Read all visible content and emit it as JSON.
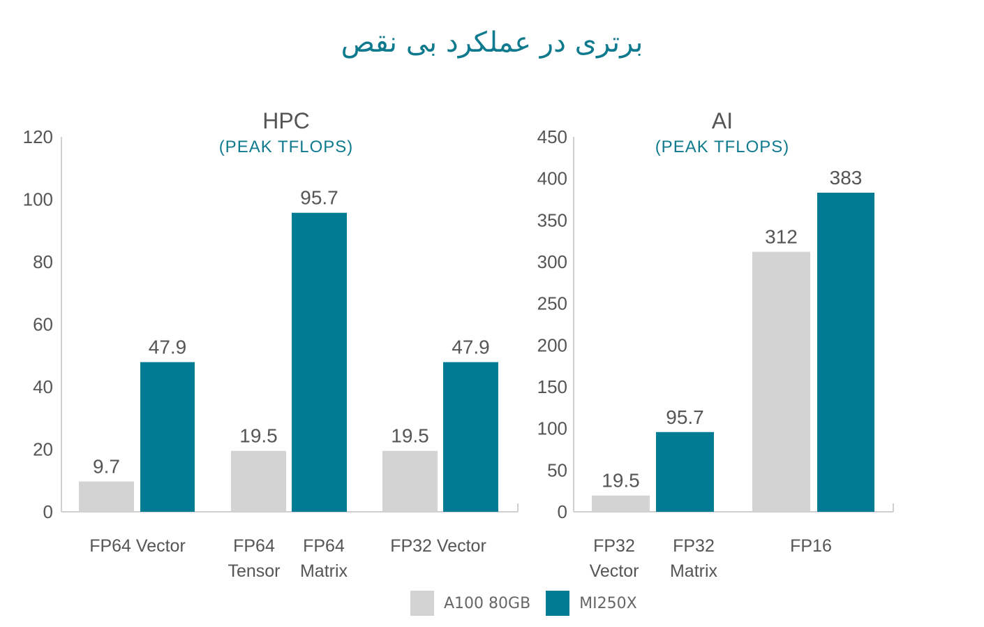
{
  "title": "برتری در عملکرد بی نقص",
  "legend": [
    {
      "label": "A100 80GB",
      "color": "#d3d3d3"
    },
    {
      "label": "MI250X",
      "color": "#007b94"
    }
  ],
  "chart_data": [
    {
      "type": "bar",
      "title": "HPC",
      "subtitle": "(PEAK TFLOPS)",
      "ylim": [
        0,
        120
      ],
      "yticks": [
        "0",
        "20",
        "40",
        "60",
        "80",
        "100",
        "120"
      ],
      "groups": [
        {
          "label_lines": [
            "FP64 Vector"
          ],
          "bars": [
            {
              "series": "A100 80GB",
              "value": 9.7,
              "label": "9.7"
            },
            {
              "series": "MI250X",
              "value": 47.9,
              "label": "47.9"
            }
          ]
        },
        {
          "label_lines": [],
          "bars": [
            {
              "series": "A100 80GB",
              "value": 19.5,
              "label": "19.5",
              "cat_lines": [
                "FP64",
                "Tensor"
              ]
            },
            {
              "series": "MI250X",
              "value": 95.7,
              "label": "95.7",
              "cat_lines": [
                "FP64",
                "Matrix"
              ]
            }
          ]
        },
        {
          "label_lines": [
            "FP32 Vector"
          ],
          "bars": [
            {
              "series": "A100 80GB",
              "value": 19.5,
              "label": "19.5"
            },
            {
              "series": "MI250X",
              "value": 47.9,
              "label": "47.9"
            }
          ]
        }
      ]
    },
    {
      "type": "bar",
      "title": "AI",
      "subtitle": "(PEAK TFLOPS)",
      "ylim": [
        0,
        450
      ],
      "yticks": [
        "0",
        "50",
        "100",
        "150",
        "200",
        "250",
        "300",
        "350",
        "400",
        "450"
      ],
      "groups": [
        {
          "label_lines": [],
          "bars": [
            {
              "series": "A100 80GB",
              "value": 19.5,
              "label": "19.5",
              "cat_lines": [
                "FP32",
                "Vector"
              ]
            },
            {
              "series": "MI250X",
              "value": 95.7,
              "label": "95.7",
              "cat_lines": [
                "FP32",
                "Matrix"
              ]
            }
          ]
        },
        {
          "label_lines": [
            "FP16"
          ],
          "bars": [
            {
              "series": "A100 80GB",
              "value": 312,
              "label": "312"
            },
            {
              "series": "MI250X",
              "value": 383,
              "label": "383"
            }
          ]
        }
      ]
    }
  ]
}
